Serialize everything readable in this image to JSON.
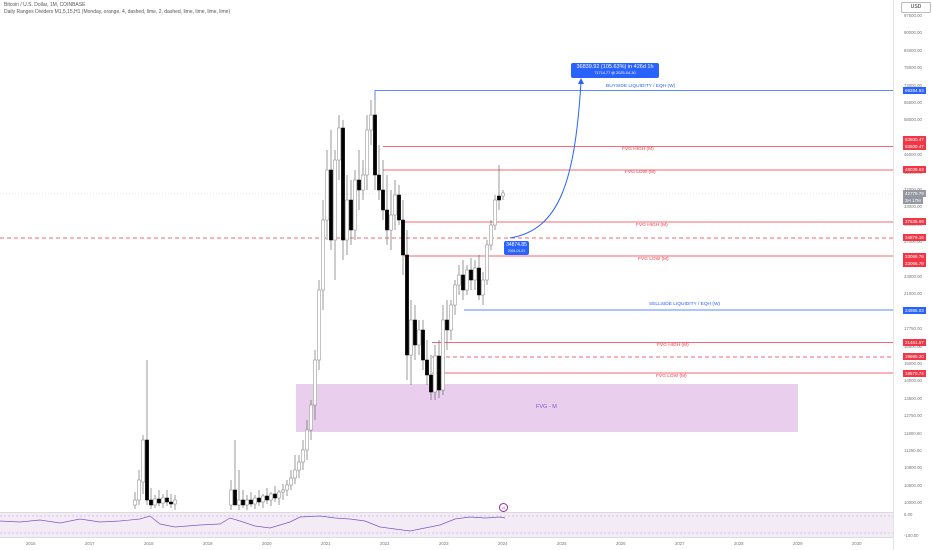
{
  "header": {
    "symbol_line": "Bitcoin / U.S. Dollar, 1M, COINBASE",
    "indicator_line": "Daily Ranges Dividers M1,5,15,H1 (Monday, orange, 4, dashed, lime, 2, dashed, lime, lime, lime, lime)"
  },
  "currency": "USD",
  "price_axis": {
    "labels": [
      {
        "value": "97500.00"
      },
      {
        "value": "90000.00"
      },
      {
        "value": "84000.00"
      },
      {
        "value": "78000.00"
      },
      {
        "value": "73000.00"
      },
      {
        "value": "65000.00"
      },
      {
        "value": "58000.00"
      },
      {
        "value": "51000.00"
      },
      {
        "value": "46000.00"
      },
      {
        "value": "41000.00"
      },
      {
        "value": "37000.00"
      },
      {
        "value": "33000.00"
      },
      {
        "value": "30000.00"
      },
      {
        "value": "27000.00"
      },
      {
        "value": "25000.00"
      },
      {
        "value": "23000.00"
      },
      {
        "value": "21000.00"
      },
      {
        "value": "19250.00"
      },
      {
        "value": "17750.00"
      },
      {
        "value": "16500.00"
      },
      {
        "value": "15000.00"
      },
      {
        "value": "14000.00"
      },
      {
        "value": "13500.00"
      },
      {
        "value": "12750.00"
      },
      {
        "value": "11800.00"
      },
      {
        "value": "11250.00"
      },
      {
        "value": "10800.00"
      },
      {
        "value": "10500.00"
      },
      {
        "value": "10000.00"
      }
    ],
    "tags": [
      {
        "text": "69284.53",
        "color": "#2962ff"
      },
      {
        "text": "53500.47",
        "color": "#f23645"
      },
      {
        "text": "53500.47",
        "color": "#f23645"
      },
      {
        "text": "48039.63",
        "color": "#f23645"
      },
      {
        "text": "42779.79",
        "color": "#9598a1"
      },
      {
        "text": "3H 17M",
        "color": "#9598a1"
      },
      {
        "text": "37535.69",
        "color": "#f23645"
      },
      {
        "text": "34879.16",
        "color": "#f23645"
      },
      {
        "text": "33066.78",
        "color": "#f23645"
      },
      {
        "text": "33066.78",
        "color": "#f23645"
      },
      {
        "text": "24986.03",
        "color": "#2962ff"
      },
      {
        "text": "21461.57",
        "color": "#f23645"
      },
      {
        "text": "19985.20",
        "color": "#f23645"
      },
      {
        "text": "18570.74",
        "color": "#f23645"
      }
    ]
  },
  "osc_axis": [
    "5.00",
    "-100.00"
  ],
  "time_axis": [
    "2016",
    "2017",
    "2018",
    "2019",
    "2020",
    "2021",
    "2022",
    "2023",
    "2024",
    "2025",
    "2026",
    "2027",
    "2028",
    "2029",
    "2030"
  ],
  "levels": {
    "buyside": "BUYSIDE LIQUIDITY / EQH (W)",
    "fvg_high_1": "FVG HIGH (M)",
    "fvg_low_1": "FVG LOW (M)",
    "fvg_high_2": "FVG HIGH (M)",
    "fvg_low_2": "FVG LOW (M)",
    "sellside": "SELLSIDE LIQUIDITY / EQH (W)",
    "fvg_high_3": "FVG HIGH (M)",
    "fvg_low_3": "FVG LOW (M)"
  },
  "fvg_zone_label": "FVG - M",
  "projection": {
    "line1": "36839.92 (105.63%) in 426d 1h",
    "line2": "71714.77 @ 2025-04-30"
  },
  "entry": {
    "line1": "34874.85",
    "line2": "2024-01-01"
  },
  "colors": {
    "bull": "#ffffff",
    "bear": "#000000",
    "fvg_line": "#f23645",
    "liquidity": "#2962ff",
    "fvg_zone": "#e1bee7"
  }
}
